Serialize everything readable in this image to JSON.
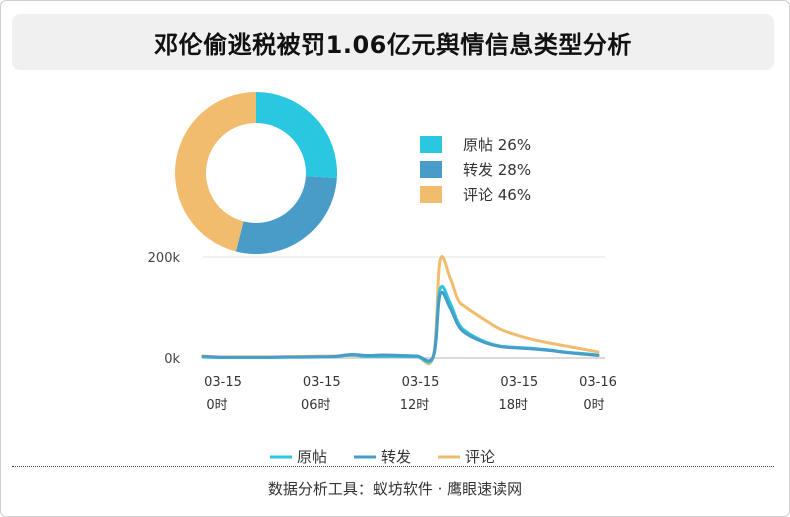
{
  "title": "邓伦偷逃税被罚1.06亿元舆情信息类型分析",
  "footer": "数据分析工具：蚁坊软件 · 鹰眼速读网",
  "colors": {
    "原帖": "#29C7E0",
    "转发": "#4A9CC8",
    "评论": "#F2BC6E",
    "grid": "#e2e2e2",
    "axis": "#999999"
  },
  "chart_data": [
    {
      "type": "pie",
      "variant": "donut",
      "legend_position": "right",
      "slices": [
        {
          "name": "原帖",
          "value": 26,
          "label": "原帖 26%"
        },
        {
          "name": "转发",
          "value": 28,
          "label": "转发 28%"
        },
        {
          "name": "评论",
          "value": 46,
          "label": "评论 46%"
        }
      ]
    },
    {
      "type": "line",
      "legend_position": "bottom",
      "ylim": [
        0,
        200000
      ],
      "y_ticks": [
        {
          "value": 0,
          "label": "0k"
        },
        {
          "value": 200000,
          "label": "200k"
        }
      ],
      "x_range": [
        0,
        24
      ],
      "x_ticks": [
        {
          "x": 0,
          "date": "03-15",
          "time": "0时"
        },
        {
          "x": 6,
          "date": "03-15",
          "time": "06时"
        },
        {
          "x": 12,
          "date": "03-15",
          "time": "12时"
        },
        {
          "x": 18,
          "date": "03-15",
          "time": "18时"
        },
        {
          "x": 24,
          "date": "03-16",
          "time": "0时"
        }
      ],
      "x": [
        0,
        1,
        2,
        3,
        4,
        5,
        6,
        7,
        8,
        9,
        10,
        11,
        12,
        13,
        14,
        14.4,
        15,
        15.5,
        16,
        17,
        18,
        19,
        20,
        21,
        22,
        23,
        24
      ],
      "series": [
        {
          "name": "原帖",
          "values": [
            2000,
            1000,
            1000,
            1000,
            1000,
            1500,
            1500,
            2000,
            2500,
            6000,
            3000,
            3500,
            3000,
            2500,
            3000,
            136000,
            110000,
            70000,
            52000,
            34000,
            24000,
            21000,
            19000,
            16000,
            12000,
            9000,
            6000
          ]
        },
        {
          "name": "转发",
          "values": [
            3000,
            1500,
            1500,
            1500,
            1500,
            2000,
            2000,
            2500,
            3000,
            7000,
            5000,
            6000,
            5000,
            4000,
            4000,
            125000,
            100000,
            65000,
            48000,
            32000,
            23000,
            20000,
            18000,
            15000,
            11000,
            8000,
            5000
          ]
        },
        {
          "name": "评论",
          "values": [
            4000,
            2000,
            2000,
            2000,
            2000,
            2500,
            3000,
            3500,
            4000,
            5000,
            4000,
            4500,
            4000,
            3500,
            4000,
            192000,
            160000,
            115000,
            100000,
            78000,
            58000,
            46000,
            37000,
            30000,
            24000,
            18000,
            12000
          ]
        }
      ]
    }
  ]
}
